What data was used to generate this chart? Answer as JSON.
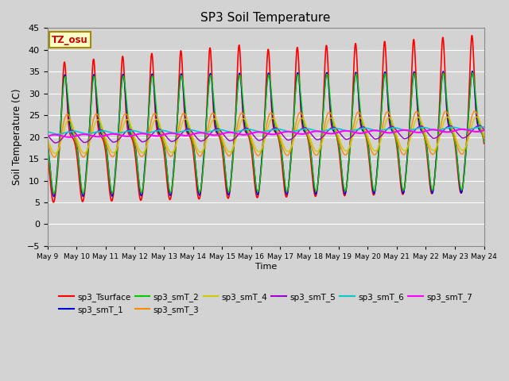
{
  "title": "SP3 Soil Temperature",
  "ylabel": "Soil Temperature (C)",
  "xlabel": "Time",
  "tz_label": "TZ_osu",
  "ylim": [
    -5,
    45
  ],
  "yticks": [
    -5,
    0,
    5,
    10,
    15,
    20,
    25,
    30,
    35,
    40,
    45
  ],
  "background_color": "#d3d3d3",
  "plot_bg_color": "#d3d3d3",
  "grid_color": "#ffffff",
  "series_order": [
    "sp3_Tsurface",
    "sp3_smT_1",
    "sp3_smT_2",
    "sp3_smT_3",
    "sp3_smT_4",
    "sp3_smT_5",
    "sp3_smT_6",
    "sp3_smT_7"
  ],
  "series": {
    "sp3_Tsurface": {
      "color": "#ff0000",
      "lw": 1.2
    },
    "sp3_smT_1": {
      "color": "#0000dd",
      "lw": 1.0
    },
    "sp3_smT_2": {
      "color": "#00cc00",
      "lw": 1.0
    },
    "sp3_smT_3": {
      "color": "#ff8800",
      "lw": 1.0
    },
    "sp3_smT_4": {
      "color": "#cccc00",
      "lw": 1.0
    },
    "sp3_smT_5": {
      "color": "#9900cc",
      "lw": 1.0
    },
    "sp3_smT_6": {
      "color": "#00cccc",
      "lw": 1.2
    },
    "sp3_smT_7": {
      "color": "#ff00ff",
      "lw": 1.5
    }
  },
  "x_start_day": 9,
  "x_end_day": 24,
  "x_tick_days": [
    9,
    10,
    11,
    12,
    13,
    14,
    15,
    16,
    17,
    18,
    19,
    20,
    21,
    22,
    23,
    24
  ],
  "x_tick_labels": [
    "May 9",
    "May 10",
    "May 11",
    "May 12",
    "May 13",
    "May 14",
    "May 15",
    "May 16",
    "May 17",
    "May 18",
    "May 19",
    "May 20",
    "May 21",
    "May 22",
    "May 23",
    "May 24"
  ]
}
